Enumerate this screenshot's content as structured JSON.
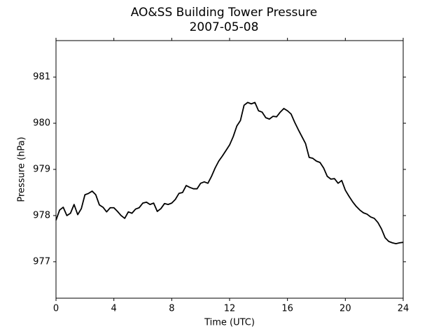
{
  "chart_data": {
    "type": "line",
    "title": "AO&SS Building Tower Pressure",
    "subtitle": "2007-05-08",
    "x_label": "Time (UTC)",
    "y_label": "Pressure (hPa)",
    "color": "#000000",
    "xlim": [
      0,
      24
    ],
    "xticks": [
      0,
      4,
      8,
      12,
      16,
      20,
      24
    ],
    "ylim": [
      976.21,
      981.79
    ],
    "yticks": [
      977,
      978,
      979,
      980,
      981
    ],
    "grid": false,
    "x": [
      0,
      0.25,
      0.5,
      0.75,
      1,
      1.25,
      1.5,
      1.75,
      2,
      2.25,
      2.5,
      2.75,
      3,
      3.25,
      3.5,
      3.75,
      4,
      4.25,
      4.5,
      4.75,
      5,
      5.25,
      5.5,
      5.75,
      6,
      6.25,
      6.5,
      6.75,
      7,
      7.25,
      7.5,
      7.75,
      8,
      8.25,
      8.5,
      8.75,
      9,
      9.25,
      9.5,
      9.75,
      10,
      10.25,
      10.5,
      10.75,
      11,
      11.25,
      11.5,
      11.75,
      12,
      12.25,
      12.5,
      12.75,
      13,
      13.25,
      13.5,
      13.75,
      14,
      14.25,
      14.5,
      14.75,
      15,
      15.25,
      15.5,
      15.75,
      16,
      16.25,
      16.5,
      16.75,
      17,
      17.25,
      17.5,
      17.75,
      18,
      18.25,
      18.5,
      18.75,
      19,
      19.25,
      19.5,
      19.75,
      20,
      20.25,
      20.5,
      20.75,
      21,
      21.25,
      21.5,
      21.75,
      22,
      22.25,
      22.5,
      22.75,
      23,
      23.25,
      23.5,
      23.75,
      24
    ],
    "values": [
      977.9,
      978.12,
      978.18,
      978.0,
      978.05,
      978.24,
      978.02,
      978.15,
      978.45,
      978.48,
      978.53,
      978.45,
      978.23,
      978.18,
      978.08,
      978.17,
      978.17,
      978.09,
      978.0,
      977.94,
      978.08,
      978.05,
      978.14,
      978.17,
      978.27,
      978.29,
      978.24,
      978.27,
      978.09,
      978.15,
      978.26,
      978.24,
      978.27,
      978.35,
      978.48,
      978.5,
      978.65,
      978.61,
      978.58,
      978.58,
      978.7,
      978.73,
      978.7,
      978.85,
      979.03,
      979.18,
      979.29,
      979.41,
      979.53,
      979.71,
      979.94,
      980.06,
      980.39,
      980.45,
      980.42,
      980.45,
      980.27,
      980.24,
      980.12,
      980.09,
      980.15,
      980.14,
      980.24,
      980.32,
      980.27,
      980.2,
      980.02,
      979.86,
      979.71,
      979.56,
      979.26,
      979.24,
      979.18,
      979.15,
      979.03,
      978.85,
      978.79,
      978.8,
      978.7,
      978.76,
      978.55,
      978.42,
      978.3,
      978.2,
      978.12,
      978.06,
      978.03,
      977.97,
      977.94,
      977.85,
      977.71,
      977.52,
      977.44,
      977.41,
      977.39,
      977.41,
      977.42
    ]
  }
}
